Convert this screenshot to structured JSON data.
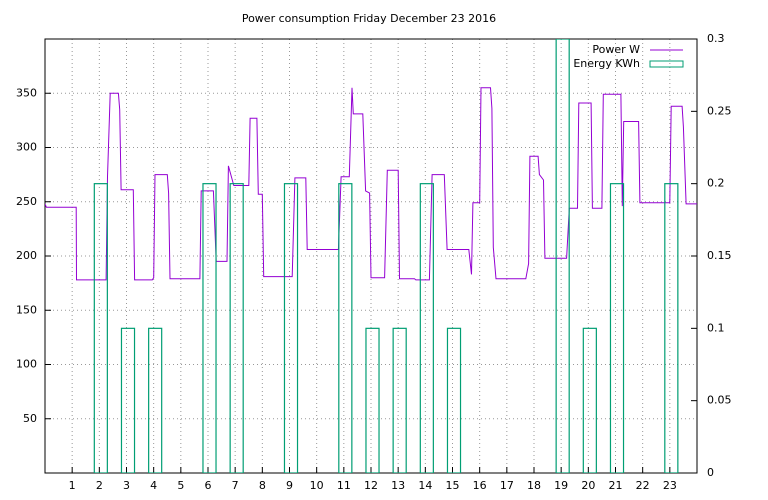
{
  "chart_data": {
    "type": "line",
    "title": "Power consumption Friday December 23 2016",
    "xlim": [
      0,
      24
    ],
    "xticks": [
      1,
      2,
      3,
      4,
      5,
      6,
      7,
      8,
      9,
      10,
      11,
      12,
      13,
      14,
      15,
      16,
      17,
      18,
      19,
      20,
      21,
      22,
      23
    ],
    "ylim": [
      0,
      400
    ],
    "yticks": [
      50,
      100,
      150,
      200,
      250,
      300,
      350
    ],
    "y2lim": [
      0,
      0.3
    ],
    "y2ticks": [
      0,
      0.05,
      0.1,
      0.15,
      0.2,
      0.25,
      0.3
    ],
    "grid": true,
    "legend": "top-right",
    "series": [
      {
        "name": "Power W",
        "color": "#9400d3",
        "x": [
          0,
          0.05,
          1.15,
          1.16,
          2.25,
          2.3,
          2.4,
          2.7,
          2.75,
          2.8,
          3.25,
          3.3,
          3.95,
          4.0,
          4.05,
          4.5,
          4.55,
          4.6,
          5.7,
          5.75,
          6.2,
          6.3,
          6.7,
          6.75,
          6.95,
          7.5,
          7.55,
          7.8,
          7.85,
          8.0,
          8.05,
          9.1,
          9.2,
          9.6,
          9.65,
          10.8,
          10.9,
          11.2,
          11.3,
          11.35,
          11.7,
          11.8,
          11.95,
          12.0,
          12.5,
          12.6,
          13.0,
          13.05,
          13.6,
          13.65,
          14.15,
          14.25,
          14.7,
          14.8,
          15.6,
          15.7,
          15.75,
          16.0,
          16.05,
          16.4,
          16.45,
          16.5,
          16.6,
          17.7,
          17.8,
          17.85,
          18.15,
          18.2,
          18.35,
          18.4,
          19.2,
          19.3,
          19.6,
          19.65,
          20.1,
          20.15,
          20.5,
          20.55,
          21.2,
          21.25,
          21.3,
          21.85,
          21.9,
          23.0,
          23.05,
          23.45,
          23.5,
          23.6,
          24.0
        ],
        "values": [
          248,
          245,
          245,
          178,
          178,
          273,
          350,
          350,
          335,
          261,
          261,
          178,
          178,
          180,
          275,
          275,
          258,
          179,
          179,
          260,
          260,
          195,
          195,
          283,
          265,
          265,
          327,
          327,
          257,
          257,
          181,
          181,
          272,
          272,
          206,
          206,
          273,
          273,
          355,
          331,
          331,
          260,
          258,
          180,
          180,
          279,
          279,
          179,
          179,
          178,
          178,
          275,
          275,
          206,
          206,
          183,
          249,
          249,
          355,
          355,
          336,
          208,
          179,
          179,
          193,
          292,
          292,
          275,
          270,
          198,
          198,
          244,
          244,
          341,
          341,
          244,
          244,
          349,
          349,
          246,
          324,
          324,
          249,
          249,
          338,
          338,
          319,
          248,
          248
        ]
      },
      {
        "name": "Energy KWh",
        "color": "#009e73",
        "axis": "y2",
        "type": "bar",
        "x": [
          2,
          3,
          4,
          6,
          7,
          9,
          11,
          12,
          13,
          14,
          15,
          19,
          20,
          21,
          23
        ],
        "values": [
          0.2,
          0.1,
          0.1,
          0.2,
          0.2,
          0.2,
          0.2,
          0.1,
          0.1,
          0.2,
          0.1,
          0.3,
          0.1,
          0.2,
          0.2
        ]
      }
    ]
  }
}
